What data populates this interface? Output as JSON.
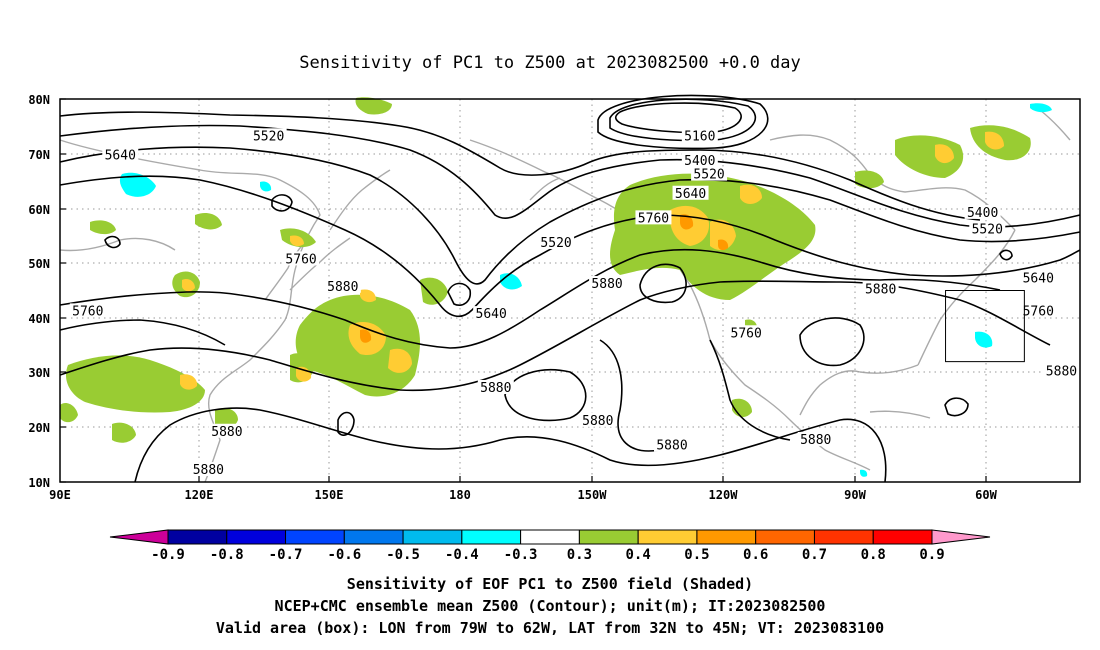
{
  "title": "Sensitivity of PC1 to Z500 at 2023082500 +0.0 day",
  "axes": {
    "lat_labels": [
      "80N",
      "70N",
      "60N",
      "50N",
      "40N",
      "30N",
      "20N",
      "10N"
    ],
    "lon_labels": [
      "90E",
      "120E",
      "150E",
      "180",
      "150W",
      "120W",
      "90W",
      "60W"
    ],
    "lat_range": [
      10,
      80
    ],
    "lon_range_east_deg": [
      90,
      310
    ],
    "grid": "dotted"
  },
  "contours": {
    "labels": [
      "5160",
      "5400",
      "5520",
      "5640",
      "5760",
      "5880"
    ],
    "label_positions": [
      {
        "text": "5520",
        "lon": 135,
        "lat": 73
      },
      {
        "text": "5640",
        "lon": 103,
        "lat": 69.5
      },
      {
        "text": "5160",
        "lon": 228,
        "lat": 73
      },
      {
        "text": "5400",
        "lon": 228,
        "lat": 68.5
      },
      {
        "text": "5520",
        "lon": 230,
        "lat": 66
      },
      {
        "text": "5640",
        "lon": 226,
        "lat": 62.5
      },
      {
        "text": "5760",
        "lon": 218,
        "lat": 58
      },
      {
        "text": "5520",
        "lon": 197,
        "lat": 53.5
      },
      {
        "text": "5400",
        "lon": 289,
        "lat": 59
      },
      {
        "text": "5520",
        "lon": 290,
        "lat": 56
      },
      {
        "text": "5640",
        "lon": 301,
        "lat": 47
      },
      {
        "text": "5760",
        "lon": 301,
        "lat": 41
      },
      {
        "text": "5880",
        "lon": 306,
        "lat": 30
      },
      {
        "text": "5760",
        "lon": 142,
        "lat": 50.5
      },
      {
        "text": "5880",
        "lon": 151,
        "lat": 45.5
      },
      {
        "text": "5760",
        "lon": 96,
        "lat": 41
      },
      {
        "text": "5640",
        "lon": 183,
        "lat": 40.5
      },
      {
        "text": "5880",
        "lon": 208,
        "lat": 46
      },
      {
        "text": "5880",
        "lon": 267,
        "lat": 45
      },
      {
        "text": "5760",
        "lon": 238,
        "lat": 37
      },
      {
        "text": "5880",
        "lon": 184,
        "lat": 27
      },
      {
        "text": "5880",
        "lon": 206,
        "lat": 21
      },
      {
        "text": "5880",
        "lon": 126,
        "lat": 19
      },
      {
        "text": "5880",
        "lon": 122,
        "lat": 12
      },
      {
        "text": "5880",
        "lon": 222,
        "lat": 16.5
      },
      {
        "text": "5880",
        "lon": 253,
        "lat": 17.5
      }
    ]
  },
  "valid_box": {
    "lon_w": 79,
    "lon_e": 62,
    "lat_s": 32,
    "lat_n": 45
  },
  "colorbar": {
    "labels": [
      "-0.9",
      "-0.8",
      "-0.7",
      "-0.6",
      "-0.5",
      "-0.4",
      "-0.3",
      "0.3",
      "0.4",
      "0.5",
      "0.6",
      "0.7",
      "0.8",
      "0.9"
    ],
    "colors": [
      "#cc0099",
      "#0000a0",
      "#0000dd",
      "#0044ff",
      "#0077ee",
      "#00bbee",
      "#00ffff",
      "#ffffff",
      "#99cc33",
      "#ffcc33",
      "#ff9900",
      "#ff6600",
      "#ff3300",
      "#ff0000",
      "#ff99cc"
    ]
  },
  "captions": {
    "line1": "Sensitivity of EOF PC1 to Z500 field (Shaded)",
    "line2": "NCEP+CMC ensemble mean Z500 (Contour); unit(m); IT:2023082500",
    "line3": "Valid area (box): LON from 79W to 62W, LAT from 32N to 45N; VT: 2023083100"
  }
}
